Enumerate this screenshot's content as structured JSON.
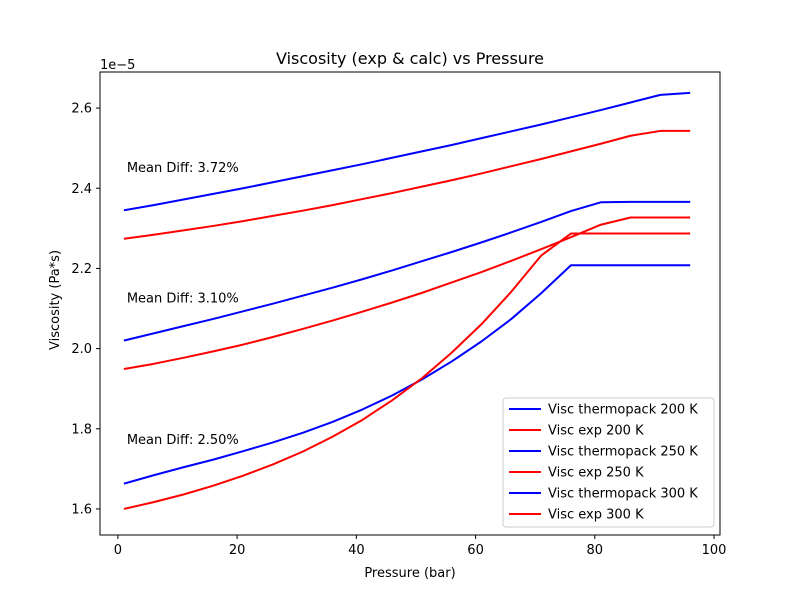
{
  "chart_data": {
    "type": "line",
    "title": "Viscosity (exp & calc) vs Pressure",
    "xlabel": "Pressure (bar)",
    "ylabel": "Viscosity (Pa*s)",
    "y_offset_label": "1e−5",
    "xlim": [
      -3,
      101
    ],
    "ylim": [
      1.535,
      2.69
    ],
    "x_ticks": [
      0,
      20,
      40,
      60,
      80,
      100
    ],
    "y_ticks": [
      1.6,
      1.8,
      2.0,
      2.2,
      2.4,
      2.6
    ],
    "x_tick_labels": [
      "0",
      "20",
      "40",
      "60",
      "80",
      "100"
    ],
    "y_tick_labels": [
      "1.6",
      "1.8",
      "2.0",
      "2.2",
      "2.4",
      "2.6"
    ],
    "grid": false,
    "legend_position": "lower-right",
    "x": [
      1,
      6,
      11,
      16,
      21,
      26,
      31,
      36,
      41,
      46,
      51,
      56,
      61,
      66,
      71,
      76,
      81,
      86,
      91,
      96
    ],
    "series": [
      {
        "name": "Visc thermopack 200 K",
        "color": "#0000ff",
        "values": [
          2.345,
          2.358,
          2.372,
          2.386,
          2.4,
          2.415,
          2.43,
          2.445,
          2.46,
          2.476,
          2.492,
          2.508,
          2.525,
          2.542,
          2.559,
          2.577,
          2.595,
          2.614,
          2.633,
          2.638
        ]
      },
      {
        "name": "Visc exp 200 K",
        "color": "#ff0000",
        "values": [
          2.274,
          2.284,
          2.295,
          2.306,
          2.318,
          2.331,
          2.344,
          2.358,
          2.373,
          2.388,
          2.404,
          2.42,
          2.437,
          2.455,
          2.473,
          2.492,
          2.511,
          2.531,
          2.543,
          2.543
        ]
      },
      {
        "name": "Visc thermopack 250 K",
        "color": "#0000ff",
        "values": [
          2.02,
          2.038,
          2.056,
          2.074,
          2.093,
          2.112,
          2.132,
          2.152,
          2.173,
          2.195,
          2.218,
          2.241,
          2.265,
          2.29,
          2.316,
          2.343,
          2.365,
          2.366,
          2.366,
          2.366
        ]
      },
      {
        "name": "Visc exp 250 K",
        "color": "#ff0000",
        "values": [
          1.949,
          1.962,
          1.977,
          1.993,
          2.01,
          2.029,
          2.049,
          2.07,
          2.092,
          2.115,
          2.139,
          2.165,
          2.191,
          2.219,
          2.248,
          2.278,
          2.309,
          2.327,
          2.327,
          2.327
        ]
      },
      {
        "name": "Visc thermopack 300 K",
        "color": "#0000ff",
        "values": [
          1.663,
          1.684,
          1.704,
          1.723,
          1.744,
          1.766,
          1.79,
          1.817,
          1.848,
          1.883,
          1.923,
          1.968,
          2.018,
          2.074,
          2.138,
          2.208,
          2.208,
          2.208,
          2.208,
          2.208
        ]
      },
      {
        "name": "Visc exp 300 K",
        "color": "#ff0000",
        "values": [
          1.6,
          1.617,
          1.636,
          1.658,
          1.683,
          1.711,
          1.743,
          1.78,
          1.822,
          1.871,
          1.926,
          1.99,
          2.061,
          2.142,
          2.232,
          2.287,
          2.287,
          2.287,
          2.287,
          2.287
        ]
      }
    ],
    "annotations": [
      {
        "text": "Mean Diff: 3.72%",
        "x": 1.5,
        "y": 2.44
      },
      {
        "text": "Mean Diff: 3.10%",
        "x": 1.5,
        "y": 2.115
      },
      {
        "text": "Mean Diff: 2.50%",
        "x": 1.5,
        "y": 1.762
      }
    ]
  }
}
